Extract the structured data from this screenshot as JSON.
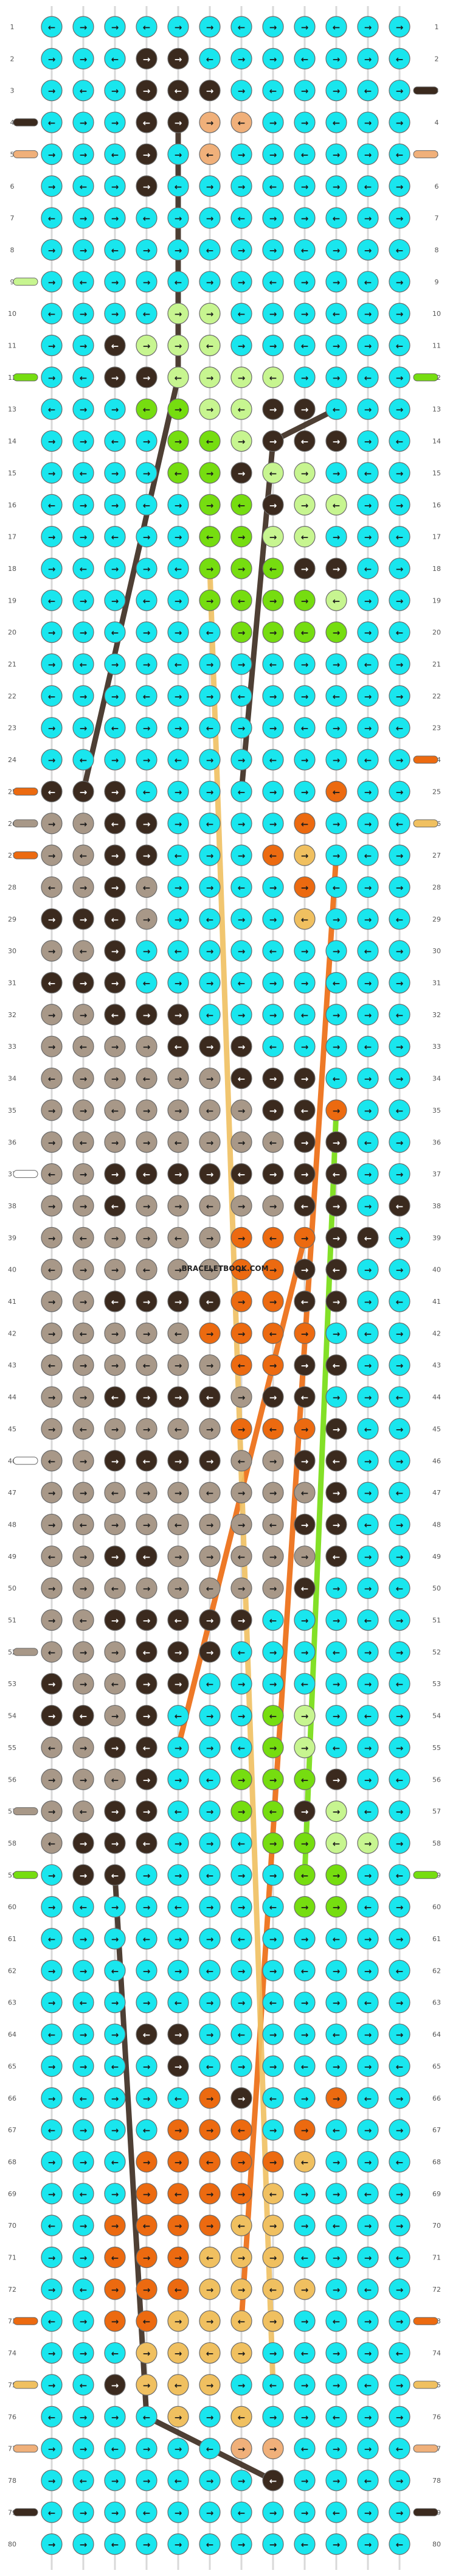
{
  "pattern": {
    "columns": 12,
    "rows": 80,
    "watermark": "BRACELETBOOK.COM",
    "palette": {
      "A": "#19e6ee",
      "B": "#3b2a1e",
      "C": "#f0b07a",
      "D": "#c7f590",
      "E": "#76dd10",
      "F": "#a89888",
      "G": "#ec6a10",
      "H": "#f0c060",
      "W": "#ffffff"
    },
    "left_strands": [
      "A",
      "A",
      "A",
      "B",
      "C",
      "A",
      "A",
      "A",
      "D",
      "A",
      "A",
      "E",
      "A",
      "A",
      "A",
      "A",
      "A",
      "A",
      "A",
      "A",
      "A",
      "A",
      "A",
      "A",
      "G",
      "F",
      "G",
      "A",
      "A",
      "A",
      "A",
      "A",
      "A",
      "A",
      "A",
      "A",
      "W",
      "A",
      "A",
      "A",
      "A",
      "A",
      "A",
      "A",
      "A",
      "W",
      "A",
      "A",
      "A",
      "A",
      "A",
      "F",
      "A",
      "A",
      "A",
      "A",
      "F",
      "A",
      "E",
      "A",
      "A",
      "A",
      "A",
      "A",
      "A",
      "A",
      "A",
      "A",
      "A",
      "A",
      "A",
      "A",
      "G",
      "A",
      "H",
      "A",
      "C",
      "A",
      "B",
      "A"
    ],
    "right_strands": [
      "A",
      "A",
      "B",
      "A",
      "C",
      "A",
      "A",
      "A",
      "A",
      "A",
      "A",
      "E",
      "A",
      "A",
      "A",
      "A",
      "A",
      "A",
      "A",
      "A",
      "A",
      "A",
      "A",
      "G",
      "A",
      "H",
      "A",
      "A",
      "A",
      "A",
      "A",
      "A",
      "A",
      "A",
      "A",
      "A",
      "A",
      "A",
      "A",
      "A",
      "A",
      "A",
      "A",
      "A",
      "A",
      "A",
      "A",
      "A",
      "A",
      "A",
      "A",
      "A",
      "A",
      "A",
      "A",
      "A",
      "A",
      "A",
      "E",
      "A",
      "A",
      "A",
      "A",
      "A",
      "A",
      "A",
      "A",
      "A",
      "A",
      "A",
      "A",
      "A",
      "G",
      "A",
      "H",
      "A",
      "C",
      "A",
      "B",
      "A"
    ],
    "rows_data": [
      "AAAAAAAAAAAA",
      "AAABBAAAAAAA",
      "AAABBBAAAAAA",
      "AAABBCCAAAAA",
      "AAABACAAAAAA",
      "AAABAAAAAAAA",
      "AAAAAAAAAAAA",
      "AAAAAAAAAAAA",
      "AAAAAAAAAAAA",
      "AAAADDAAAAAA",
      "AABDDDAAAAAA",
      "AABBDDDDAAAA",
      "AAAEEDDBBAAA",
      "AAAAEEDBBBAA",
      "AAAAEEBDDAAA",
      "AAAAAEEBDDAA",
      "AAAAAEEDDAAA",
      "AAAAAEEEBBAA",
      "AAAAAEEEEDAA",
      "AAAAAAEEEEAA",
      "AAAAAAAAAAAA",
      "AAAAAAAAAAAA",
      "AAAAAAAAAAAA",
      "AAAAAAAAAAAA",
      "BBBAAAAAAGAA",
      "FFBBAAAAGAAA",
      "FFBBAAAGHAAA",
      "FFBFAAAAGAAA",
      "BBBFAAAAHAAA",
      "FFBAAAAAAAAA",
      "BBBAAAAAAAAA",
      "FFBBBAAAAAAA",
      "FFFFBBBAAAAA",
      "FFFFFFBBBAAA",
      "FFFFFFFBBGAA",
      "FFFFFFFFBBAA",
      "FFBBBBBBBBAA",
      "FFBFFFFFBBAB",
      "FFFFFFGGGBBA",
      "FFFFFFGGBBAA",
      "FFBBBBGGBBAA",
      "FFFFFGGGGAAA",
      "FFFFFFGGBBAA",
      "FFBBBBFBBAAA",
      "FFFFFFGGGBAA",
      "FFBBBBFFBBAA",
      "FFFFFFFFFBAA",
      "FFFFFFFFBBAA",
      "FFBBFFFFFBAA",
      "FFFFFFFFBAAA",
      "FFBBBBBAAAAA",
      "FFFBBBAAAAAA",
      "BFFBBAAAAAAA",
      "BBFBAAAEDAAA",
      "FFBBAAAEDAAA",
      "FFFBAAEEEBAA",
      "FFBBAAEEBDAA",
      "FBBBAAAEEDDA",
      "ABBAAAAAEEAA",
      "AAAAAAAAEEAA",
      "AAAAAAAAAAAA",
      "AAAAAAAAAAAA",
      "AAAAAAAAAAAA",
      "AAABBAAAAAAA",
      "AAAABAAAAAAA",
      "AAAAAGBAAGAA",
      "AAAAGGGAGAAA",
      "AAAGGGGGHAAA",
      "AAAGGGGHAAAA",
      "AAGGGGHHAAAA",
      "AAGGGHHHAAAA",
      "AAGGGHHHHAAA",
      "AAGGHHHHAAAA",
      "AAAHHHHAAAAA",
      "AABHHHAAAAAA",
      "AAAAHAHAAAAA",
      "AAAAAACCAAAA",
      "AAAAAAABAAAA",
      "AAAAAAAAAAAA",
      "AAAAAAAAAAAA"
    ],
    "diagonal_strands": [
      {
        "color": "B",
        "points": [
          [
            1,
            24
          ],
          [
            4,
            11
          ],
          [
            4,
            3
          ]
        ]
      },
      {
        "color": "B",
        "points": [
          [
            6,
            24
          ],
          [
            7,
            13
          ],
          [
            9,
            12
          ]
        ]
      },
      {
        "color": "B",
        "points": [
          [
            2,
            58
          ],
          [
            3,
            75
          ],
          [
            7,
            77
          ]
        ]
      },
      {
        "color": "G",
        "points": [
          [
            9,
            26
          ],
          [
            6,
            72
          ]
        ]
      },
      {
        "color": "G",
        "points": [
          [
            8,
            38
          ],
          [
            4,
            54
          ]
        ]
      },
      {
        "color": "E",
        "points": [
          [
            9,
            34
          ],
          [
            8,
            58
          ]
        ]
      },
      {
        "color": "H",
        "points": [
          [
            5,
            17
          ],
          [
            7,
            74
          ]
        ]
      }
    ]
  }
}
